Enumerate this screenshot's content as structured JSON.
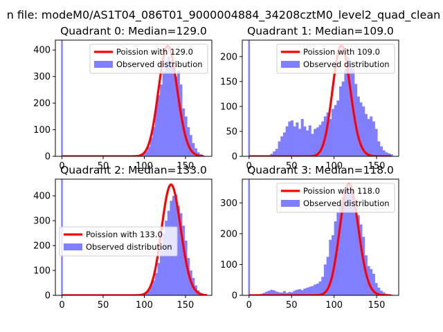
{
  "figure_title": "n file: modeM0/AS1T04_086T01_9000004884_34208cztM0_level2_quad_clean",
  "chart_data": [
    {
      "type": "bar",
      "title": "Quadrant 0: Median=129.0",
      "xlim": [
        -8,
        182
      ],
      "ylim": [
        0,
        437
      ],
      "xticks": [
        0,
        50,
        100,
        150
      ],
      "yticks": [
        0,
        100,
        200,
        300,
        400
      ],
      "legend": {
        "location": "top-right",
        "entries": [
          "Poission with 129.0",
          "Observed distribution"
        ]
      },
      "zero_bin_height": 437,
      "bins": {
        "x": [
          95,
          98,
          101,
          104,
          107,
          110,
          113,
          116,
          119,
          122,
          125,
          128,
          131,
          134,
          137,
          140,
          143,
          146,
          149,
          152,
          155,
          158,
          161,
          164,
          167,
          170
        ],
        "values": [
          5,
          10,
          20,
          35,
          70,
          110,
          190,
          230,
          270,
          320,
          360,
          375,
          360,
          330,
          300,
          320,
          270,
          180,
          150,
          110,
          80,
          50,
          30,
          15,
          8,
          3
        ]
      },
      "poisson": {
        "lambda": 129.0,
        "peak": 415,
        "x_range": [
          0,
          172
        ]
      }
    },
    {
      "type": "bar",
      "title": "Quadrant 1: Median=109.0",
      "xlim": [
        -8,
        176
      ],
      "ylim": [
        0,
        233
      ],
      "xticks": [
        0,
        50,
        100,
        150
      ],
      "yticks": [
        0,
        50,
        100,
        150,
        200
      ],
      "legend": {
        "location": "top-right",
        "entries": [
          "Poission with 109.0",
          "Observed distribution"
        ]
      },
      "zero_bin_height": 233,
      "bins": {
        "x": [
          25,
          28,
          31,
          34,
          37,
          40,
          43,
          46,
          49,
          52,
          55,
          58,
          61,
          64,
          67,
          70,
          73,
          76,
          79,
          82,
          85,
          88,
          91,
          94,
          97,
          100,
          103,
          106,
          109,
          112,
          115,
          118,
          121,
          124,
          127,
          130,
          133,
          136,
          139,
          142,
          145,
          148,
          151,
          154,
          157,
          160,
          163,
          166
        ],
        "values": [
          5,
          10,
          15,
          30,
          40,
          48,
          60,
          70,
          72,
          60,
          68,
          55,
          75,
          60,
          52,
          62,
          45,
          55,
          58,
          63,
          70,
          80,
          88,
          75,
          95,
          103,
          112,
          140,
          150,
          175,
          200,
          190,
          175,
          145,
          120,
          108,
          100,
          85,
          75,
          80,
          70,
          55,
          30,
          20,
          12,
          8,
          6,
          4
        ]
      },
      "poisson": {
        "lambda": 109.0,
        "peak": 222,
        "x_range": [
          0,
          167
        ]
      }
    },
    {
      "type": "bar",
      "title": "Quadrant 2: Median=133.0",
      "xlim": [
        -8,
        182
      ],
      "ylim": [
        0,
        467
      ],
      "xticks": [
        0,
        50,
        100,
        150
      ],
      "yticks": [
        0,
        100,
        200,
        300,
        400
      ],
      "legend": {
        "location": "center-left",
        "entries": [
          "Poission with 133.0",
          "Observed distribution"
        ]
      },
      "zero_bin_height": 467,
      "bins": {
        "x": [
          98,
          101,
          104,
          107,
          110,
          113,
          116,
          119,
          122,
          125,
          128,
          131,
          134,
          137,
          140,
          143,
          146,
          149,
          152,
          155,
          158,
          161,
          164,
          167,
          170,
          173
        ],
        "values": [
          5,
          10,
          20,
          40,
          60,
          90,
          130,
          200,
          250,
          300,
          340,
          380,
          400,
          405,
          360,
          330,
          280,
          220,
          150,
          100,
          70,
          40,
          20,
          10,
          5,
          2
        ]
      },
      "poisson": {
        "lambda": 133.0,
        "peak": 445,
        "x_range": [
          0,
          176
        ]
      }
    },
    {
      "type": "bar",
      "title": "Quadrant 3: Median=118.0",
      "xlim": [
        -8,
        176
      ],
      "ylim": [
        0,
        377
      ],
      "xticks": [
        0,
        50,
        100,
        150
      ],
      "yticks": [
        0,
        100,
        200,
        300
      ],
      "legend": {
        "location": "top-right",
        "entries": [
          "Poission with 118.0",
          "Observed distribution"
        ]
      },
      "zero_bin_height": 377,
      "bins": {
        "x": [
          10,
          13,
          16,
          19,
          22,
          25,
          28,
          31,
          34,
          37,
          40,
          43,
          46,
          49,
          52,
          55,
          58,
          61,
          64,
          67,
          70,
          73,
          76,
          79,
          82,
          85,
          88,
          91,
          94,
          97,
          100,
          103,
          106,
          109,
          112,
          115,
          118,
          121,
          124,
          127,
          130,
          133,
          136,
          139,
          142,
          145,
          148,
          151,
          154,
          157,
          160,
          163,
          166
        ],
        "values": [
          3,
          5,
          8,
          12,
          15,
          18,
          16,
          12,
          10,
          9,
          14,
          8,
          11,
          10,
          15,
          18,
          20,
          17,
          22,
          25,
          28,
          30,
          35,
          38,
          45,
          60,
          100,
          125,
          180,
          195,
          240,
          270,
          300,
          320,
          340,
          345,
          360,
          320,
          300,
          260,
          230,
          190,
          130,
          95,
          85,
          70,
          40,
          25,
          15,
          10,
          5,
          3,
          2
        ]
      },
      "poisson": {
        "lambda": 118.0,
        "peak": 362,
        "x_range": [
          0,
          167
        ]
      }
    }
  ]
}
